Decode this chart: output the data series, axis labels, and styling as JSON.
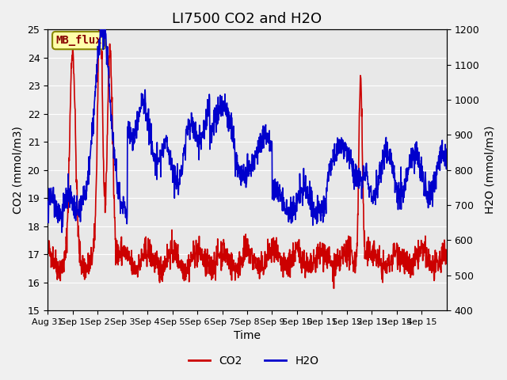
{
  "title": "LI7500 CO2 and H2O",
  "xlabel": "Time",
  "ylabel_left": "CO2 (mmol/m3)",
  "ylabel_right": "H2O (mmol/m3)",
  "ylim_left": [
    15.0,
    25.0
  ],
  "ylim_right": [
    400,
    1200
  ],
  "xtick_labels": [
    "Aug 31",
    "Sep 1",
    "Sep 2",
    "Sep 3",
    "Sep 4",
    "Sep 5",
    "Sep 6",
    "Sep 7",
    "Sep 8",
    "Sep 9",
    "Sep 10",
    "Sep 11",
    "Sep 12",
    "Sep 13",
    "Sep 14",
    "Sep 15"
  ],
  "ytick_left": [
    15.0,
    16.0,
    17.0,
    18.0,
    19.0,
    20.0,
    21.0,
    22.0,
    23.0,
    24.0,
    25.0
  ],
  "ytick_right": [
    400,
    500,
    600,
    700,
    800,
    900,
    1000,
    1100,
    1200
  ],
  "co2_color": "#cc0000",
  "h2o_color": "#0000cc",
  "bg_color": "#e8e8e8",
  "annotation_text": "MB_flux",
  "annotation_bg": "#ffffaa",
  "annotation_border": "#888800",
  "grid_color": "#ffffff",
  "legend_co2": "CO2",
  "legend_h2o": "H2O",
  "title_fontsize": 13,
  "axis_fontsize": 10,
  "tick_fontsize": 9,
  "legend_fontsize": 10,
  "linewidth": 1.2,
  "n_days": 16,
  "pts_per_day": 96
}
